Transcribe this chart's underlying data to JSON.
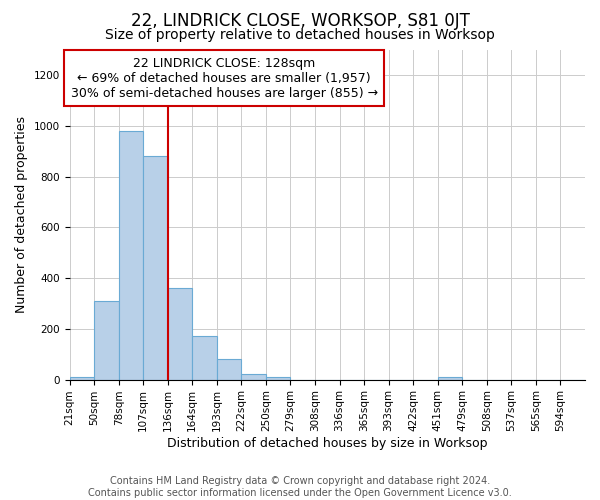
{
  "title": "22, LINDRICK CLOSE, WORKSOP, S81 0JT",
  "subtitle": "Size of property relative to detached houses in Worksop",
  "xlabel": "Distribution of detached houses by size in Worksop",
  "ylabel": "Number of detached properties",
  "categories": [
    "21sqm",
    "50sqm",
    "78sqm",
    "107sqm",
    "136sqm",
    "164sqm",
    "193sqm",
    "222sqm",
    "250sqm",
    "279sqm",
    "308sqm",
    "336sqm",
    "365sqm",
    "393sqm",
    "422sqm",
    "451sqm",
    "479sqm",
    "508sqm",
    "537sqm",
    "565sqm",
    "594sqm"
  ],
  "values": [
    10,
    310,
    980,
    880,
    360,
    170,
    80,
    22,
    12,
    0,
    0,
    0,
    0,
    0,
    0,
    10,
    0,
    0,
    0,
    0,
    0
  ],
  "bar_color": "#b8d0e8",
  "bar_edge_color": "#6aaad4",
  "bar_edge_width": 0.8,
  "red_line_color": "#cc0000",
  "red_line_index": 4,
  "annotation_box_text": "22 LINDRICK CLOSE: 128sqm\n← 69% of detached houses are smaller (1,957)\n30% of semi-detached houses are larger (855) →",
  "annotation_box_color": "#ffffff",
  "annotation_box_edge_color": "#cc0000",
  "ylim": [
    0,
    1300
  ],
  "yticks": [
    0,
    200,
    400,
    600,
    800,
    1000,
    1200
  ],
  "grid_color": "#cccccc",
  "bg_color": "#ffffff",
  "plot_bg_color": "#ffffff",
  "footer_text": "Contains HM Land Registry data © Crown copyright and database right 2024.\nContains public sector information licensed under the Open Government Licence v3.0.",
  "title_fontsize": 12,
  "subtitle_fontsize": 10,
  "xlabel_fontsize": 9,
  "ylabel_fontsize": 9,
  "tick_fontsize": 7.5,
  "footer_fontsize": 7,
  "annotation_fontsize": 9
}
